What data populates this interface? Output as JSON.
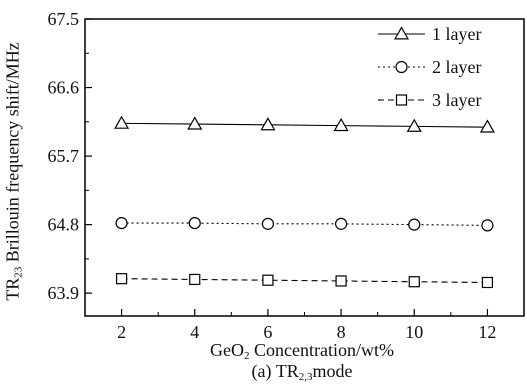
{
  "chart_data": {
    "type": "line",
    "x": [
      2,
      4,
      6,
      8,
      10,
      12
    ],
    "xlim": [
      1,
      13
    ],
    "ylim": [
      63.6,
      67.5
    ],
    "x_ticks": [
      "2",
      "4",
      "6",
      "8",
      "10",
      "12"
    ],
    "y_ticks": [
      "63.9",
      "64.8",
      "65.7",
      "66.6",
      "67.5"
    ],
    "xlabel": {
      "main": "GeO",
      "sub": "2",
      "rest": " Concentration/wt%"
    },
    "ylabel": {
      "main": "TR",
      "sub": "23",
      "rest": " Brillouin frequency shift/MHz"
    },
    "caption": {
      "pre": "(a) TR",
      "sub": "2,3",
      "post": "mode"
    },
    "legend_position": "top-right",
    "grid": false,
    "series": [
      {
        "name": "1 layer",
        "marker": "triangle",
        "line": "solid",
        "values": [
          66.13,
          66.12,
          66.11,
          66.1,
          66.09,
          66.08
        ]
      },
      {
        "name": "2 layer",
        "marker": "circle",
        "line": "dotted",
        "values": [
          64.82,
          64.82,
          64.81,
          64.81,
          64.8,
          64.79
        ]
      },
      {
        "name": "3 layer",
        "marker": "square",
        "line": "dashed",
        "values": [
          64.09,
          64.08,
          64.07,
          64.06,
          64.05,
          64.04
        ]
      }
    ]
  }
}
